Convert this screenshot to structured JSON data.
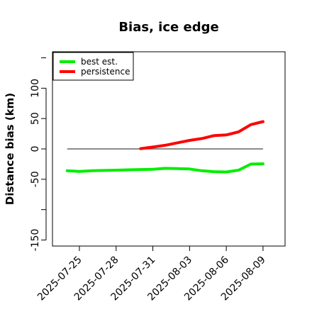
{
  "chart_data": {
    "type": "line",
    "title": "Bias, ice edge",
    "xlabel": "",
    "ylabel": "Distance bias (km)",
    "ylim": [
      -160,
      160
    ],
    "yticks": [
      -150,
      -50,
      0,
      50,
      100
    ],
    "xlim_days": [
      -2.2,
      16.8
    ],
    "xticks": [
      "2025-07-25",
      "2025-07-28",
      "2025-07-31",
      "2025-08-03",
      "2025-08-06",
      "2025-08-09"
    ],
    "reference_line": 0,
    "grid": false,
    "legend_position": "top-left",
    "series": [
      {
        "name": "best est.",
        "color": "#00ee00",
        "x": [
          "2025-07-24",
          "2025-07-25",
          "2025-07-26",
          "2025-07-27",
          "2025-07-28",
          "2025-07-29",
          "2025-07-30",
          "2025-07-31",
          "2025-08-01",
          "2025-08-02",
          "2025-08-03",
          "2025-08-04",
          "2025-08-05",
          "2025-08-06",
          "2025-08-07",
          "2025-08-08",
          "2025-08-09"
        ],
        "values": [
          -36,
          -37,
          -36,
          -35.5,
          -35,
          -34.5,
          -34,
          -33.5,
          -32,
          -32.5,
          -33,
          -36,
          -37.5,
          -38,
          -35,
          -25,
          -24.5
        ]
      },
      {
        "name": "persistence",
        "color": "#ff0000",
        "x": [
          "2025-07-30",
          "2025-07-31",
          "2025-08-01",
          "2025-08-02",
          "2025-08-03",
          "2025-08-04",
          "2025-08-05",
          "2025-08-06",
          "2025-08-07",
          "2025-08-08",
          "2025-08-09"
        ],
        "values": [
          0.5,
          3,
          6,
          10,
          14,
          17,
          22,
          23,
          28,
          40,
          45
        ]
      }
    ],
    "colors": {
      "zero_line": "#666666",
      "axis": "#000000"
    }
  }
}
